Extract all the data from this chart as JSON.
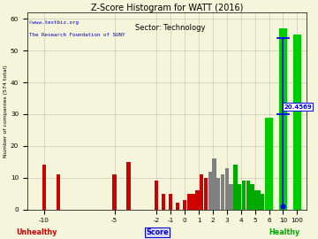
{
  "title": "Z-Score Histogram for WATT (2016)",
  "subtitle": "Sector: Technology",
  "xlabel_main": "Score",
  "ylabel": "Number of companies (574 total)",
  "watermark1": "©www.textbiz.org",
  "watermark2": "The Research Foundation of SUNY",
  "unhealthy_label": "Unhealthy",
  "healthy_label": "Healthy",
  "watt_zscore_label": "20.4569",
  "ylim": [
    0,
    60
  ],
  "yticks": [
    0,
    10,
    20,
    30,
    40,
    50,
    60
  ],
  "bg_color": "#f5f5dc",
  "grid_color": "#999999",
  "title_color": "#000000",
  "subtitle_color": "#000000",
  "watermark_color": "#0000cc",
  "unhealthy_color": "#cc0000",
  "healthy_color": "#00aa00",
  "score_color": "#0000cc",
  "small_bars": [
    [
      -10,
      14,
      "#cc0000"
    ],
    [
      -9,
      11,
      "#cc0000"
    ],
    [
      -5,
      11,
      "#cc0000"
    ],
    [
      -4,
      15,
      "#cc0000"
    ],
    [
      -2,
      9,
      "#cc0000"
    ],
    [
      -1.5,
      5,
      "#cc0000"
    ],
    [
      -1,
      5,
      "#cc0000"
    ],
    [
      -0.5,
      2,
      "#cc0000"
    ],
    [
      0,
      3,
      "#cc0000"
    ],
    [
      0.3,
      5,
      "#cc0000"
    ],
    [
      0.6,
      5,
      "#cc0000"
    ],
    [
      0.9,
      6,
      "#cc0000"
    ],
    [
      1.2,
      11,
      "#cc0000"
    ],
    [
      1.5,
      10,
      "#cc0000"
    ],
    [
      1.8,
      12,
      "#808080"
    ],
    [
      2.1,
      16,
      "#808080"
    ],
    [
      2.4,
      10,
      "#808080"
    ],
    [
      2.7,
      11,
      "#808080"
    ],
    [
      3.0,
      13,
      "#808080"
    ],
    [
      3.3,
      8,
      "#808080"
    ],
    [
      3.6,
      14,
      "#00aa00"
    ],
    [
      3.9,
      8,
      "#00aa00"
    ],
    [
      4.2,
      9,
      "#00aa00"
    ],
    [
      4.5,
      9,
      "#00aa00"
    ],
    [
      4.8,
      8,
      "#00aa00"
    ],
    [
      5.0,
      6,
      "#00aa00"
    ],
    [
      5.25,
      6,
      "#00aa00"
    ],
    [
      5.5,
      5,
      "#00aa00"
    ]
  ],
  "big_bars": [
    [
      6.0,
      29,
      "#00cc00"
    ],
    [
      7.0,
      57,
      "#00cc00"
    ],
    [
      8.0,
      55,
      "#00cc00"
    ]
  ],
  "big_bar_tick_labels": [
    "6",
    "10",
    "100"
  ],
  "small_bar_tick_positions": [
    -10,
    -5,
    -2,
    -1,
    0,
    1,
    2,
    3,
    4,
    5
  ],
  "xtick_labels": [
    "-10",
    "-5",
    "-2",
    "-1",
    "0",
    "1",
    "2",
    "3",
    "4",
    "5"
  ]
}
